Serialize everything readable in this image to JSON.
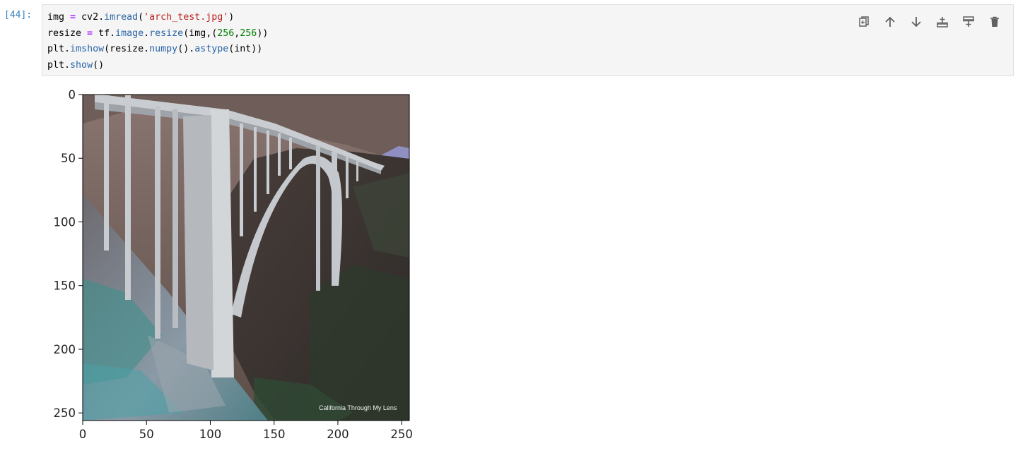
{
  "cell": {
    "prompt": "[44]:",
    "code": [
      [
        {
          "t": "img ",
          "c": ""
        },
        {
          "t": "=",
          "c": "op"
        },
        {
          "t": " cv2",
          "c": ""
        },
        {
          "t": ".",
          "c": ""
        },
        {
          "t": "imread",
          "c": "attr"
        },
        {
          "t": "(",
          "c": ""
        },
        {
          "t": "'arch_test.jpg'",
          "c": "str"
        },
        {
          "t": ")",
          "c": ""
        }
      ],
      [
        {
          "t": "resize ",
          "c": ""
        },
        {
          "t": "=",
          "c": "op"
        },
        {
          "t": " tf",
          "c": ""
        },
        {
          "t": ".",
          "c": ""
        },
        {
          "t": "image",
          "c": "attr"
        },
        {
          "t": ".",
          "c": ""
        },
        {
          "t": "resize",
          "c": "attr"
        },
        {
          "t": "(img,(",
          "c": ""
        },
        {
          "t": "256",
          "c": "num"
        },
        {
          "t": ",",
          "c": ""
        },
        {
          "t": "256",
          "c": "num"
        },
        {
          "t": "))",
          "c": ""
        }
      ],
      [
        {
          "t": "plt",
          "c": ""
        },
        {
          "t": ".",
          "c": ""
        },
        {
          "t": "imshow",
          "c": "attr"
        },
        {
          "t": "(resize",
          "c": ""
        },
        {
          "t": ".",
          "c": ""
        },
        {
          "t": "numpy",
          "c": "attr"
        },
        {
          "t": "()",
          "c": ""
        },
        {
          "t": ".",
          "c": ""
        },
        {
          "t": "astype",
          "c": "attr"
        },
        {
          "t": "(int))",
          "c": ""
        }
      ],
      [
        {
          "t": "plt",
          "c": ""
        },
        {
          "t": ".",
          "c": ""
        },
        {
          "t": "show",
          "c": "attr"
        },
        {
          "t": "()",
          "c": ""
        }
      ]
    ]
  },
  "toolbar": [
    {
      "name": "duplicate-cell-icon"
    },
    {
      "name": "move-up-icon"
    },
    {
      "name": "move-down-icon"
    },
    {
      "name": "insert-above-icon"
    },
    {
      "name": "insert-below-icon"
    },
    {
      "name": "delete-cell-icon"
    }
  ],
  "figure": {
    "x_ticks": [
      0,
      50,
      100,
      150,
      200,
      250
    ],
    "y_ticks": [
      0,
      50,
      100,
      150,
      200,
      250
    ],
    "x_range": [
      0,
      256
    ],
    "y_range": [
      0,
      256
    ],
    "image_watermark": "California Through My Lens"
  },
  "colors": {
    "prompt": "#307fc1",
    "code_bg": "#f5f5f5",
    "keyword_op": "#aa22ff",
    "string": "#ba2121",
    "number": "#008000",
    "attribute": "#2863a6"
  }
}
